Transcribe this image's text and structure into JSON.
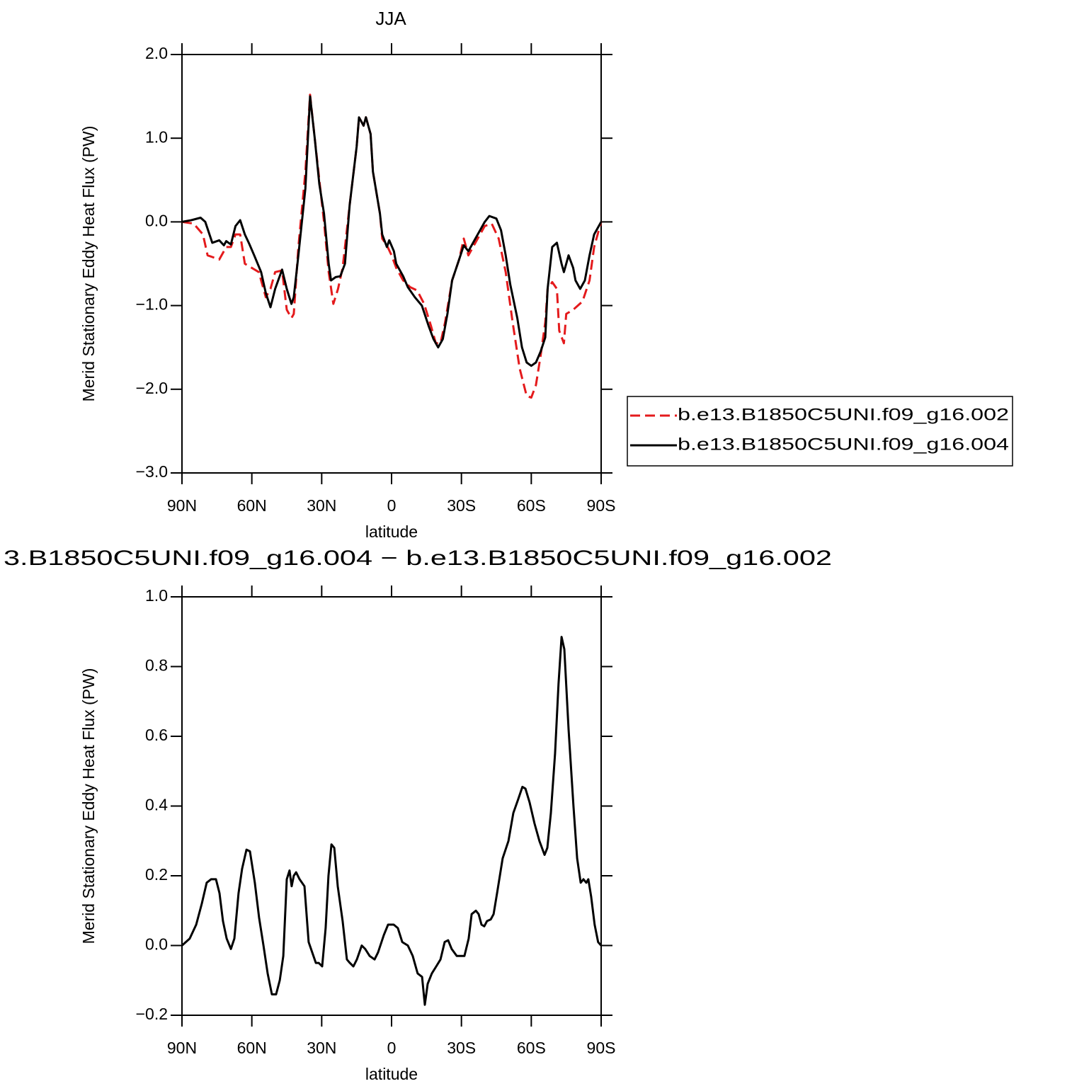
{
  "chart_data": [
    {
      "type": "line",
      "title": "JJA",
      "xlabel": "latitude",
      "ylabel": "Merid Stationary Eddy Heat Flux (PW)",
      "xlim": [
        90,
        -90
      ],
      "xticks": [
        {
          "value": 90,
          "label": "90N"
        },
        {
          "value": 60,
          "label": "60N"
        },
        {
          "value": 30,
          "label": "30N"
        },
        0,
        {
          "value": -30,
          "label": "30S"
        },
        {
          "value": -60,
          "label": "60S"
        },
        {
          "value": -90,
          "label": "90S"
        }
      ],
      "ylim": [
        -3,
        2
      ],
      "yticks": [
        {
          "value": -3,
          "label": "−3.0"
        },
        {
          "value": -2,
          "label": "−2.0"
        },
        {
          "value": -1,
          "label": "−1.0"
        },
        {
          "value": 0,
          "label": "0.0"
        },
        {
          "value": 1,
          "label": "1.0"
        },
        {
          "value": 2,
          "label": "2.0"
        }
      ],
      "legend": "right",
      "series": [
        {
          "name": "b.e13.B1850C5UNI.f09_g16.002",
          "color": "#e41a1c",
          "line_style": "dashed",
          "x": [
            90,
            85,
            81,
            79,
            77,
            74,
            71,
            69,
            67,
            65,
            63,
            60,
            57,
            54,
            52,
            50,
            47,
            45,
            43,
            42,
            40,
            37,
            35,
            33,
            31,
            29,
            27,
            25,
            23,
            21,
            18,
            15,
            14,
            12,
            11,
            9,
            8,
            5,
            4,
            2,
            0,
            -2,
            -5,
            -8,
            -11,
            -14,
            -17,
            -19,
            -21,
            -23,
            -26,
            -29,
            -31,
            -33,
            -36,
            -38,
            -40,
            -43,
            -46,
            -49,
            -52,
            -55,
            -58,
            -60,
            -62,
            -64,
            -66,
            -67,
            -69,
            -71,
            -72,
            -74,
            -75,
            -78,
            -80,
            -82,
            -85,
            -87,
            -90
          ],
          "values": [
            0,
            -0.02,
            -0.15,
            -0.4,
            -0.42,
            -0.45,
            -0.3,
            -0.3,
            -0.15,
            -0.15,
            -0.5,
            -0.55,
            -0.6,
            -0.9,
            -0.8,
            -0.6,
            -0.58,
            -1.05,
            -1.15,
            -1.1,
            -0.3,
            0.6,
            1.52,
            1.0,
            0.5,
            0.0,
            -0.6,
            -0.98,
            -0.8,
            -0.55,
            0.2,
            0.9,
            1.25,
            1.15,
            1.25,
            1.05,
            0.6,
            0.1,
            -0.2,
            -0.28,
            -0.4,
            -0.55,
            -0.7,
            -0.78,
            -0.82,
            -0.98,
            -1.25,
            -1.45,
            -1.45,
            -1.2,
            -0.7,
            -0.45,
            -0.2,
            -0.4,
            -0.25,
            -0.15,
            -0.05,
            -0.02,
            -0.2,
            -0.6,
            -1.2,
            -1.75,
            -2.08,
            -2.1,
            -1.95,
            -1.6,
            -1.2,
            -0.8,
            -0.72,
            -0.8,
            -1.3,
            -1.45,
            -1.1,
            -1.05,
            -1.0,
            -0.95,
            -0.7,
            -0.3,
            0
          ]
        },
        {
          "name": "b.e13.B1850C5UNI.f09_g16.004",
          "color": "#000000",
          "line_style": "solid",
          "x": [
            90,
            86,
            82,
            80,
            77,
            74,
            72,
            71,
            69,
            67,
            65,
            63,
            61,
            59,
            56,
            54,
            52,
            50,
            47,
            45,
            43,
            42,
            40,
            37,
            35,
            33,
            31,
            29,
            27,
            26,
            24,
            22,
            20,
            18,
            15,
            14,
            12,
            11,
            9,
            8,
            5,
            4,
            2,
            1,
            -1,
            -2,
            -5,
            -7,
            -10,
            -13,
            -16,
            -18,
            -20,
            -22,
            -24,
            -26,
            -29,
            -31,
            -33,
            -36,
            -38,
            -40,
            -42,
            -45,
            -47,
            -49,
            -51,
            -54,
            -56,
            -58,
            -60,
            -62,
            -64,
            -66,
            -67,
            -69,
            -71,
            -73,
            -74,
            -76,
            -78,
            -79,
            -81,
            -83,
            -85,
            -87,
            -90
          ],
          "values": [
            0,
            0.02,
            0.05,
            0,
            -0.25,
            -0.22,
            -0.28,
            -0.23,
            -0.27,
            -0.05,
            0.02,
            -0.15,
            -0.27,
            -0.4,
            -0.6,
            -0.85,
            -1.02,
            -0.8,
            -0.57,
            -0.8,
            -0.98,
            -0.9,
            -0.4,
            0.4,
            1.5,
            1.0,
            0.45,
            0.1,
            -0.5,
            -0.7,
            -0.66,
            -0.65,
            -0.5,
            0.2,
            0.9,
            1.25,
            1.15,
            1.25,
            1.05,
            0.6,
            0.1,
            -0.15,
            -0.3,
            -0.22,
            -0.35,
            -0.5,
            -0.65,
            -0.78,
            -0.9,
            -1.0,
            -1.25,
            -1.4,
            -1.5,
            -1.4,
            -1.1,
            -0.7,
            -0.45,
            -0.28,
            -0.35,
            -0.2,
            -0.1,
            0,
            0.07,
            0.04,
            -0.1,
            -0.4,
            -0.75,
            -1.15,
            -1.5,
            -1.68,
            -1.72,
            -1.68,
            -1.55,
            -1.38,
            -0.8,
            -0.3,
            -0.25,
            -0.5,
            -0.6,
            -0.4,
            -0.55,
            -0.7,
            -0.8,
            -0.7,
            -0.4,
            -0.15,
            0
          ]
        }
      ]
    },
    {
      "type": "line",
      "title": "3.B1850C5UNI.f09_g16.004 − b.e13.B1850C5UNI.f09_g16.002",
      "xlabel": "latitude",
      "ylabel": "Merid Stationary Eddy Heat Flux (PW)",
      "xlim": [
        90,
        -90
      ],
      "xticks": [
        {
          "value": 90,
          "label": "90N"
        },
        {
          "value": 60,
          "label": "60N"
        },
        {
          "value": 30,
          "label": "30N"
        },
        0,
        {
          "value": -30,
          "label": "30S"
        },
        {
          "value": -60,
          "label": "60S"
        },
        {
          "value": -90,
          "label": "90S"
        }
      ],
      "ylim": [
        -0.2,
        1
      ],
      "yticks": [
        {
          "value": -0.2,
          "label": "−0.2"
        },
        {
          "value": 0,
          "label": "0.0"
        },
        0.2,
        0.4,
        0.6,
        0.8,
        {
          "value": 1,
          "label": "1.0"
        }
      ],
      "series": [
        {
          "color": "#000000",
          "line_style": "solid",
          "x": [
            90,
            86.7,
            83.9,
            81.5,
            79.4,
            77.5,
            75.4,
            73.9,
            72.4,
            70.8,
            69,
            67.5,
            65.7,
            64.2,
            62.3,
            60.8,
            58.7,
            56.9,
            55,
            53.2,
            51.4,
            49.6,
            48,
            46.5,
            45,
            43.8,
            42.9,
            42,
            41,
            39.5,
            37.4,
            35.6,
            32.5,
            31.3,
            29.8,
            28.3,
            27.1,
            25.8,
            24.6,
            23.1,
            21,
            19.2,
            17.9,
            16.4,
            14.9,
            12.8,
            11.3,
            9.4,
            7.3,
            5.8,
            3.3,
            1.5,
            -0.9,
            -2.7,
            -4.6,
            -7,
            -9.1,
            -11.2,
            -13.1,
            -14.3,
            -15.5,
            -17.3,
            -19.2,
            -21,
            -22.8,
            -24.3,
            -25.8,
            -28,
            -30.1,
            -31.3,
            -33.1,
            -34.4,
            -36.2,
            -37.4,
            -38.6,
            -39.8,
            -41,
            -42.6,
            -43.8,
            -45.3,
            -47.7,
            -50.2,
            -52.3,
            -54.4,
            -56.2,
            -57.5,
            -59.3,
            -61.4,
            -63.5,
            -65.7,
            -66.9,
            -68.4,
            -70.2,
            -71.7,
            -73,
            -74.2,
            -76,
            -78.1,
            -79.7,
            -81.2,
            -82.4,
            -83.6,
            -84.5,
            -85.7,
            -87.2,
            -88.7,
            -90
          ],
          "values": [
            0,
            0.02,
            0.06,
            0.12,
            0.18,
            0.19,
            0.19,
            0.15,
            0.07,
            0.02,
            -0.01,
            0.02,
            0.15,
            0.22,
            0.275,
            0.27,
            0.18,
            0.08,
            0,
            -0.08,
            -0.14,
            -0.14,
            -0.1,
            -0.03,
            0.19,
            0.215,
            0.17,
            0.2,
            0.21,
            0.19,
            0.17,
            0.01,
            -0.05,
            -0.05,
            -0.06,
            0.05,
            0.2,
            0.29,
            0.28,
            0.17,
            0.07,
            -0.04,
            -0.05,
            -0.06,
            -0.04,
            0,
            -0.01,
            -0.03,
            -0.04,
            -0.02,
            0.03,
            0.06,
            0.06,
            0.05,
            0.01,
            0,
            -0.03,
            -0.08,
            -0.09,
            -0.17,
            -0.11,
            -0.08,
            -0.06,
            -0.04,
            0.01,
            0.015,
            -0.01,
            -0.03,
            -0.03,
            -0.03,
            0.02,
            0.09,
            0.1,
            0.09,
            0.06,
            0.055,
            0.07,
            0.075,
            0.09,
            0.15,
            0.25,
            0.3,
            0.38,
            0.42,
            0.455,
            0.45,
            0.41,
            0.35,
            0.3,
            0.26,
            0.28,
            0.38,
            0.55,
            0.75,
            0.885,
            0.85,
            0.62,
            0.4,
            0.25,
            0.18,
            0.19,
            0.18,
            0.19,
            0.14,
            0.06,
            0.01,
            0
          ]
        }
      ]
    }
  ]
}
